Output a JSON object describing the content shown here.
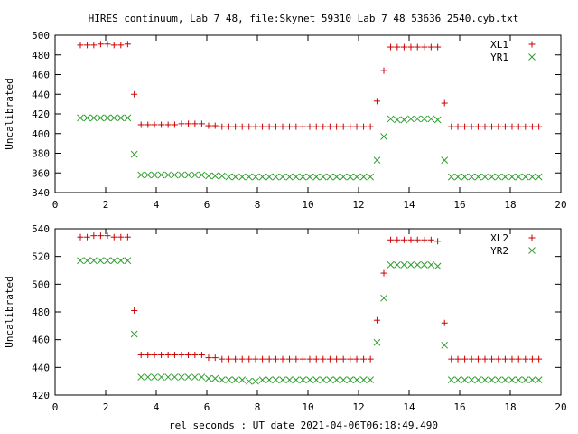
{
  "title": "HIRES continuum, Lab_7_48, file:Skynet_59310_Lab_7_48_53636_2540.cyb.txt",
  "xlabel": "rel seconds : UT date 2021-04-06T06:18:49.490",
  "colors": {
    "xl": "#cc0000",
    "yr": "#2e9e2e"
  },
  "chart_data": [
    {
      "type": "scatter",
      "ylabel": "Uncalibrated",
      "xlim": [
        0,
        20
      ],
      "ylim": [
        340,
        500
      ],
      "xticks": [
        0,
        2,
        4,
        6,
        8,
        10,
        12,
        14,
        16,
        18,
        20
      ],
      "yticks": [
        340,
        360,
        380,
        400,
        420,
        440,
        460,
        480,
        500
      ],
      "legend_position": "top-right",
      "x": [
        1.0,
        1.27,
        1.53,
        1.8,
        2.07,
        2.33,
        2.6,
        2.87,
        3.13,
        3.4,
        3.67,
        3.93,
        4.2,
        4.47,
        4.73,
        5.0,
        5.27,
        5.53,
        5.8,
        6.07,
        6.33,
        6.6,
        6.87,
        7.13,
        7.4,
        7.67,
        7.93,
        8.2,
        8.47,
        8.73,
        9.0,
        9.27,
        9.53,
        9.8,
        10.07,
        10.33,
        10.6,
        10.87,
        11.13,
        11.4,
        11.67,
        11.93,
        12.2,
        12.47,
        12.73,
        13.0,
        13.27,
        13.53,
        13.8,
        14.07,
        14.33,
        14.6,
        14.87,
        15.13,
        15.4,
        15.67,
        15.93,
        16.2,
        16.47,
        16.73,
        17.0,
        17.27,
        17.53,
        17.8,
        18.07,
        18.33,
        18.6,
        18.87,
        19.13
      ],
      "series": [
        {
          "name": "XL1",
          "marker": "plus",
          "values": [
            490,
            490,
            490,
            491,
            491,
            490,
            490,
            491,
            440,
            409,
            409,
            409,
            409,
            409,
            409,
            410,
            410,
            410,
            410,
            408,
            408,
            407,
            407,
            407,
            407,
            407,
            407,
            407,
            407,
            407,
            407,
            407,
            407,
            407,
            407,
            407,
            407,
            407,
            407,
            407,
            407,
            407,
            407,
            407,
            433,
            464,
            488,
            488,
            488,
            488,
            488,
            488,
            488,
            488,
            431,
            407,
            407,
            407,
            407,
            407,
            407,
            407,
            407,
            407,
            407,
            407,
            407,
            407,
            407
          ]
        },
        {
          "name": "YR1",
          "marker": "cross",
          "values": [
            416,
            416,
            416,
            416,
            416,
            416,
            416,
            416,
            379,
            358,
            358,
            358,
            358,
            358,
            358,
            358,
            358,
            358,
            358,
            357,
            357,
            357,
            356,
            356,
            356,
            356,
            356,
            356,
            356,
            356,
            356,
            356,
            356,
            356,
            356,
            356,
            356,
            356,
            356,
            356,
            356,
            356,
            356,
            356,
            373,
            397,
            415,
            414,
            414,
            415,
            415,
            415,
            415,
            414,
            373,
            356,
            356,
            356,
            356,
            356,
            356,
            356,
            356,
            356,
            356,
            356,
            356,
            356,
            356
          ]
        }
      ]
    },
    {
      "type": "scatter",
      "ylabel": "Uncalibrated",
      "xlim": [
        0,
        20
      ],
      "ylim": [
        420,
        540
      ],
      "xticks": [
        0,
        2,
        4,
        6,
        8,
        10,
        12,
        14,
        16,
        18,
        20
      ],
      "yticks": [
        420,
        440,
        460,
        480,
        500,
        520,
        540
      ],
      "legend_position": "top-right",
      "x": [
        1.0,
        1.27,
        1.53,
        1.8,
        2.07,
        2.33,
        2.6,
        2.87,
        3.13,
        3.4,
        3.67,
        3.93,
        4.2,
        4.47,
        4.73,
        5.0,
        5.27,
        5.53,
        5.8,
        6.07,
        6.33,
        6.6,
        6.87,
        7.13,
        7.4,
        7.67,
        7.93,
        8.2,
        8.47,
        8.73,
        9.0,
        9.27,
        9.53,
        9.8,
        10.07,
        10.33,
        10.6,
        10.87,
        11.13,
        11.4,
        11.67,
        11.93,
        12.2,
        12.47,
        12.73,
        13.0,
        13.27,
        13.53,
        13.8,
        14.07,
        14.33,
        14.6,
        14.87,
        15.13,
        15.4,
        15.67,
        15.93,
        16.2,
        16.47,
        16.73,
        17.0,
        17.27,
        17.53,
        17.8,
        18.07,
        18.33,
        18.6,
        18.87,
        19.13
      ],
      "series": [
        {
          "name": "XL2",
          "marker": "plus",
          "values": [
            534,
            534,
            535,
            535,
            535,
            534,
            534,
            534,
            481,
            449,
            449,
            449,
            449,
            449,
            449,
            449,
            449,
            449,
            449,
            447,
            447,
            446,
            446,
            446,
            446,
            446,
            446,
            446,
            446,
            446,
            446,
            446,
            446,
            446,
            446,
            446,
            446,
            446,
            446,
            446,
            446,
            446,
            446,
            446,
            474,
            508,
            532,
            532,
            532,
            532,
            532,
            532,
            532,
            531,
            472,
            446,
            446,
            446,
            446,
            446,
            446,
            446,
            446,
            446,
            446,
            446,
            446,
            446,
            446
          ]
        },
        {
          "name": "YR2",
          "marker": "cross",
          "values": [
            517,
            517,
            517,
            517,
            517,
            517,
            517,
            517,
            464,
            433,
            433,
            433,
            433,
            433,
            433,
            433,
            433,
            433,
            433,
            432,
            432,
            431,
            431,
            431,
            431,
            430,
            430,
            431,
            431,
            431,
            431,
            431,
            431,
            431,
            431,
            431,
            431,
            431,
            431,
            431,
            431,
            431,
            431,
            431,
            458,
            490,
            514,
            514,
            514,
            514,
            514,
            514,
            514,
            513,
            456,
            431,
            431,
            431,
            431,
            431,
            431,
            431,
            431,
            431,
            431,
            431,
            431,
            431,
            431
          ]
        }
      ]
    }
  ]
}
